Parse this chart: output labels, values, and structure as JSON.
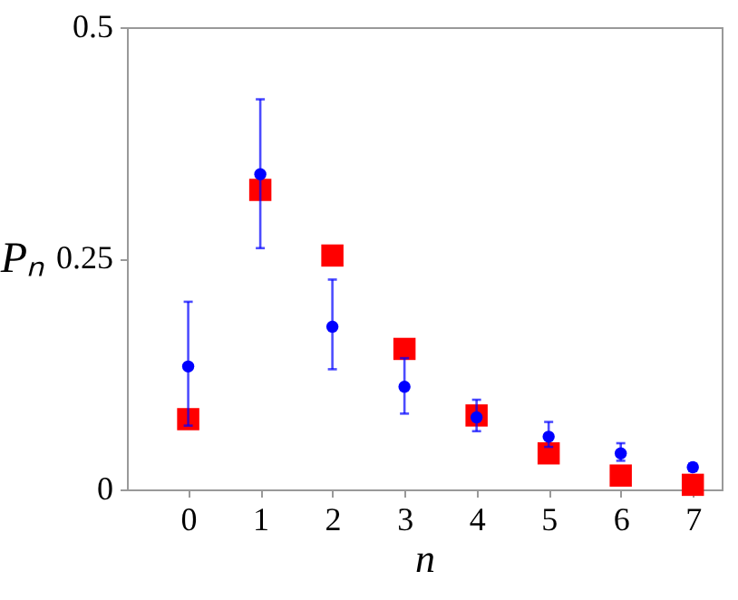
{
  "chart_data": {
    "type": "scatter",
    "xlabel": "n",
    "ylabel": "Pₙ",
    "x": [
      0,
      1,
      2,
      3,
      4,
      5,
      6,
      7
    ],
    "xlim": [
      -0.85,
      7.4
    ],
    "xticks": [
      0,
      1,
      2,
      3,
      4,
      5,
      6,
      7
    ],
    "ylim": [
      0,
      0.5
    ],
    "yticks": [
      0,
      0.25,
      0.5
    ],
    "grid": false,
    "series": [
      {
        "color": "#ff0000",
        "marker": "square",
        "values": [
          0.076,
          0.324,
          0.253,
          0.152,
          0.08,
          0.039,
          0.015,
          0.005
        ]
      },
      {
        "color": "#0000ff",
        "marker": "circle",
        "values": [
          0.133,
          0.341,
          0.176,
          0.111,
          0.078,
          0.057,
          0.039,
          0.024
        ],
        "errors": [
          [
            0.069,
            0.203
          ],
          [
            0.261,
            0.422
          ],
          [
            0.13,
            0.227
          ],
          [
            0.082,
            0.142
          ],
          [
            0.063,
            0.097
          ],
          [
            0.046,
            0.073
          ],
          [
            0.031,
            0.05
          ],
          [
            0.02,
            0.028
          ]
        ]
      }
    ]
  }
}
